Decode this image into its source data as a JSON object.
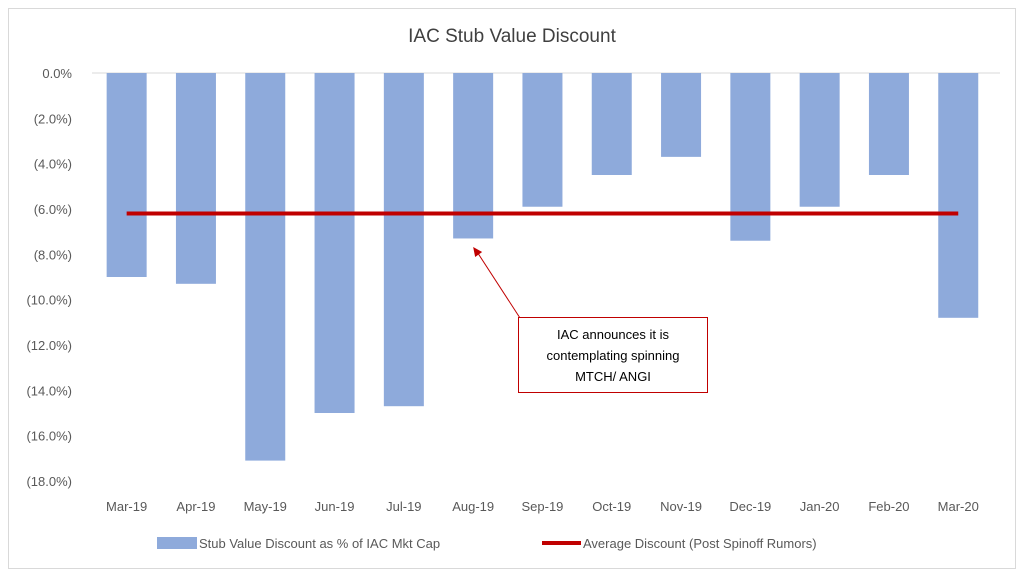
{
  "chart_data": {
    "type": "bar",
    "title": "IAC Stub Value Discount",
    "categories": [
      "Mar-19",
      "Apr-19",
      "May-19",
      "Jun-19",
      "Jul-19",
      "Aug-19",
      "Sep-19",
      "Oct-19",
      "Nov-19",
      "Dec-19",
      "Jan-20",
      "Feb-20",
      "Mar-20"
    ],
    "series": [
      {
        "name": "Stub Value Discount  as % of IAC Mkt Cap",
        "type": "bar",
        "color": "#8eaadb",
        "values": [
          -9.0,
          -9.3,
          -17.1,
          -15.0,
          -14.7,
          -7.3,
          -5.9,
          -4.5,
          -3.7,
          -7.4,
          -5.9,
          -4.5,
          -10.8
        ]
      },
      {
        "name": "Average Discount  (Post Spinoff Rumors)",
        "type": "line",
        "color": "#c00000",
        "values": [
          -6.2,
          -6.2,
          -6.2,
          -6.2,
          -6.2,
          -6.2,
          -6.2,
          -6.2,
          -6.2,
          -6.2,
          -6.2,
          -6.2,
          -6.2
        ]
      }
    ],
    "yticks": [
      "0.0%",
      "(2.0%)",
      "(4.0%)",
      "(6.0%)",
      "(8.0%)",
      "(10.0%)",
      "(12.0%)",
      "(14.0%)",
      "(16.0%)",
      "(18.0%)"
    ],
    "ylim": [
      -18,
      0
    ],
    "grid": false,
    "legend": "bottom",
    "annotation": {
      "text": "IAC announces it is contemplating spinning MTCH/ ANGI",
      "target": "Aug-19"
    }
  }
}
